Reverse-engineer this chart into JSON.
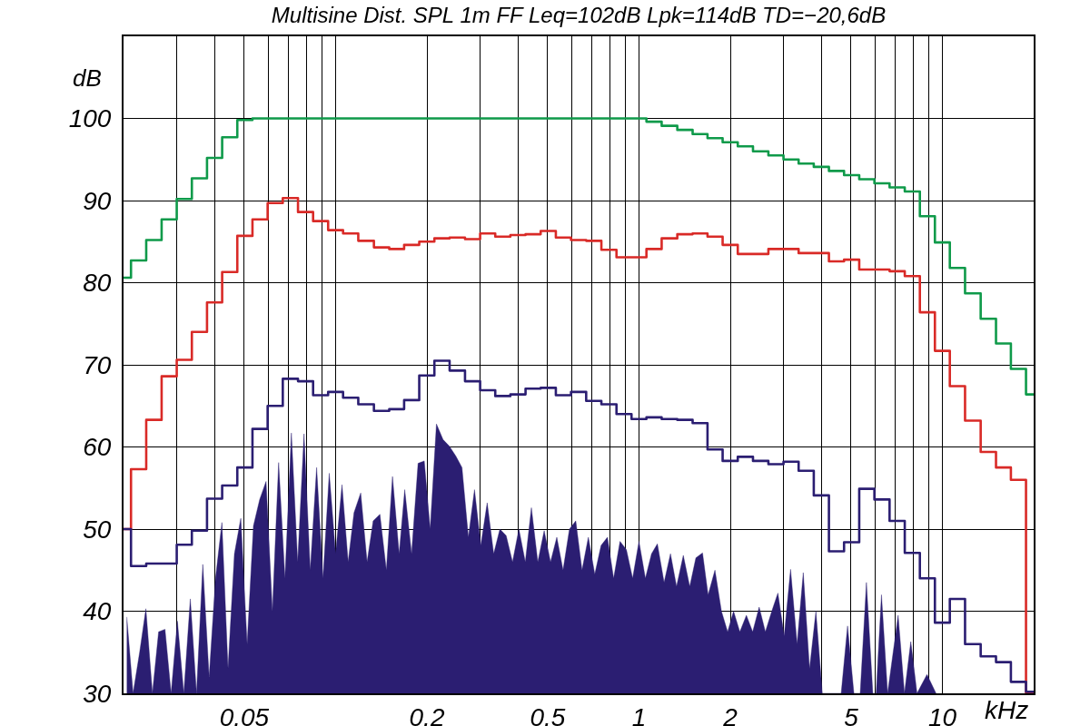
{
  "chart_data": {
    "type": "step",
    "title": "Multisine Dist. SPL 1m FF Leq=102dB Lpk=114dB TD=−20,6dB",
    "xlabel": "kHz",
    "ylabel": "dB",
    "log": "x",
    "grid": true,
    "xlim": [
      0.02,
      20
    ],
    "ylim": [
      30,
      110
    ],
    "xticks": [
      {
        "value": 0.03,
        "label": null
      },
      {
        "value": 0.04,
        "label": null
      },
      0.05,
      {
        "value": 0.06,
        "label": null
      },
      {
        "value": 0.07,
        "label": null
      },
      {
        "value": 0.08,
        "label": null
      },
      {
        "value": 0.09,
        "label": null
      },
      {
        "value": 0.1,
        "label": null
      },
      0.2,
      {
        "value": 0.3,
        "label": null
      },
      {
        "value": 0.4,
        "label": null
      },
      0.5,
      {
        "value": 0.6,
        "label": null
      },
      {
        "value": 0.7,
        "label": null
      },
      {
        "value": 0.8,
        "label": null
      },
      {
        "value": 0.9,
        "label": null
      },
      1,
      2,
      {
        "value": 3,
        "label": null
      },
      {
        "value": 4,
        "label": null
      },
      5,
      {
        "value": 6,
        "label": null
      },
      {
        "value": 7,
        "label": null
      },
      {
        "value": 8,
        "label": null
      },
      {
        "value": 9,
        "label": null
      },
      10
    ],
    "yticks": [
      30,
      40,
      50,
      60,
      70,
      80,
      90,
      100
    ],
    "x": [
      0.02,
      0.0224,
      0.0252,
      0.0283,
      0.0317,
      0.0356,
      0.0399,
      0.0448,
      0.0502,
      0.0564,
      0.0632,
      0.071,
      0.0796,
      0.0893,
      0.1,
      0.112,
      0.126,
      0.142,
      0.159,
      0.178,
      0.2,
      0.224,
      0.252,
      0.283,
      0.317,
      0.356,
      0.399,
      0.448,
      0.502,
      0.564,
      0.632,
      0.71,
      0.796,
      0.893,
      1,
      1.12,
      1.26,
      1.42,
      1.59,
      1.78,
      2,
      2.24,
      2.52,
      2.83,
      3.17,
      3.56,
      3.99,
      4.48,
      5.02,
      5.64,
      6.32,
      7.1,
      7.96,
      8.93,
      10,
      11.2,
      12.6,
      14.2,
      15.9,
      17.8,
      20
    ],
    "series": [
      {
        "type": "area",
        "color": "#2b1e72",
        "x": [
          0.0205,
          0.0215,
          0.0226,
          0.0237,
          0.0249,
          0.0261,
          0.0274,
          0.0287,
          0.0301,
          0.0316,
          0.0332,
          0.0348,
          0.0365,
          0.0383,
          0.0402,
          0.0422,
          0.0442,
          0.0464,
          0.0487,
          0.0511,
          0.0536,
          0.0562,
          0.059,
          0.0619,
          0.0649,
          0.0681,
          0.0715,
          0.075,
          0.0787,
          0.0825,
          0.0866,
          0.0909,
          0.0953,
          0.1,
          0.105,
          0.11,
          0.115,
          0.121,
          0.127,
          0.133,
          0.14,
          0.147,
          0.154,
          0.162,
          0.169,
          0.178,
          0.187,
          0.196,
          0.205,
          0.215,
          0.226,
          0.237,
          0.249,
          0.261,
          0.274,
          0.287,
          0.301,
          0.316,
          0.332,
          0.348,
          0.365,
          0.383,
          0.402,
          0.422,
          0.442,
          0.464,
          0.487,
          0.511,
          0.536,
          0.562,
          0.59,
          0.619,
          0.649,
          0.681,
          0.715,
          0.75,
          0.787,
          0.825,
          0.866,
          0.909,
          0.953,
          1,
          1.05,
          1.1,
          1.15,
          1.21,
          1.27,
          1.33,
          1.4,
          1.47,
          1.54,
          1.62,
          1.69,
          1.78,
          1.87,
          1.96,
          2.05,
          2.15,
          2.26,
          2.37,
          2.49,
          2.61,
          2.74,
          2.87,
          3.01,
          3.16,
          3.32,
          3.48,
          3.65,
          3.83,
          4.02,
          4.64,
          4.87,
          5.11,
          5.36,
          5.62,
          5.9,
          6.05,
          6.3,
          6.6,
          7.15,
          7.5,
          7.87,
          8.25,
          8.9,
          9.53
        ],
        "values": [
          39.3,
          30,
          35,
          40.3,
          30,
          37.5,
          37.8,
          30,
          38.8,
          30,
          41.5,
          30,
          45.7,
          32,
          44,
          50.8,
          33,
          47,
          51.3,
          36,
          50.4,
          53.6,
          55.8,
          40,
          58.1,
          44,
          61.7,
          46,
          61.6,
          45,
          57.5,
          44,
          56.8,
          47,
          55.4,
          46,
          52,
          54.4,
          46,
          51,
          51.8,
          45,
          56.4,
          47,
          54.8,
          47,
          58,
          58.3,
          50,
          62.8,
          60.9,
          60.1,
          58.9,
          57.5,
          49,
          54.8,
          48,
          53.2,
          47,
          50,
          49.2,
          46,
          50,
          46,
          52.6,
          46,
          49.8,
          46,
          49,
          45,
          50,
          51,
          45,
          49,
          44.5,
          48,
          49,
          44,
          48.5,
          47.5,
          44,
          48.5,
          44,
          47,
          48.2,
          43.5,
          47,
          43,
          46.8,
          43,
          46.5,
          47.1,
          42,
          45,
          40,
          37.5,
          40,
          37.5,
          39.5,
          37.5,
          40.5,
          37.5,
          40,
          42.2,
          37,
          45.1,
          36,
          44.7,
          33,
          40,
          30,
          30,
          38.2,
          30,
          30,
          43.5,
          30,
          30,
          42,
          30,
          39.5,
          30,
          36.3,
          30,
          32.3,
          30
        ]
      },
      {
        "color": "#0f9a4a",
        "values": [
          80.6,
          82.7,
          85.2,
          87.7,
          90.2,
          92.7,
          95.2,
          97.7,
          99.8,
          100,
          100,
          100,
          100,
          100,
          100,
          100,
          100,
          100,
          100,
          100,
          100,
          100,
          100,
          100,
          100,
          100,
          100,
          100,
          100,
          100,
          100,
          100,
          100,
          100,
          100,
          99.6,
          99.1,
          98.6,
          98.1,
          97.6,
          97.1,
          96.6,
          96.0,
          95.5,
          95.0,
          94.5,
          94.1,
          93.6,
          93.1,
          92.6,
          92.1,
          91.6,
          91.1,
          88.1,
          84.9,
          81.8,
          78.7,
          75.6,
          72.6,
          69.5,
          66.4
        ]
      },
      {
        "color": "#d92a27",
        "values": [
          50,
          57.3,
          63.3,
          68.6,
          70.6,
          74.0,
          77.6,
          81.3,
          85.7,
          87.7,
          89.7,
          90.3,
          88.6,
          87.5,
          86.4,
          86.0,
          85.1,
          84.3,
          84.1,
          84.6,
          85.0,
          85.4,
          85.5,
          85.3,
          86.0,
          85.6,
          85.8,
          85.9,
          86.3,
          85.5,
          85.2,
          85.1,
          84.0,
          83.1,
          83.1,
          84.1,
          85.4,
          85.9,
          86.0,
          85.6,
          84.6,
          83.5,
          83.5,
          84.1,
          84.1,
          83.6,
          83.6,
          82.6,
          82.8,
          81.6,
          81.6,
          81.4,
          80.8,
          76.4,
          71.7,
          67.4,
          63.2,
          59.4,
          57.5,
          56.0,
          30
        ]
      },
      {
        "color": "#2b1e72",
        "values": [
          50,
          45.5,
          45.8,
          45.8,
          48.1,
          49.8,
          53.7,
          55.3,
          57.5,
          62.2,
          65.0,
          68.3,
          68.0,
          66.3,
          66.7,
          66.0,
          65.2,
          64.4,
          64.6,
          65.7,
          68.7,
          70.5,
          69.3,
          68.0,
          66.9,
          66.2,
          66.4,
          67.1,
          67.2,
          66.3,
          66.7,
          65.6,
          65.2,
          64.0,
          63.4,
          63.6,
          63.4,
          63.3,
          62.9,
          59.7,
          58.3,
          58.8,
          58.3,
          57.9,
          58.2,
          57.1,
          54.1,
          47.3,
          48.4,
          54.9,
          53.6,
          51.0,
          47.1,
          44.0,
          38.6,
          41.5,
          36.0,
          34.5,
          33.8,
          31.4,
          30.2
        ]
      }
    ]
  }
}
